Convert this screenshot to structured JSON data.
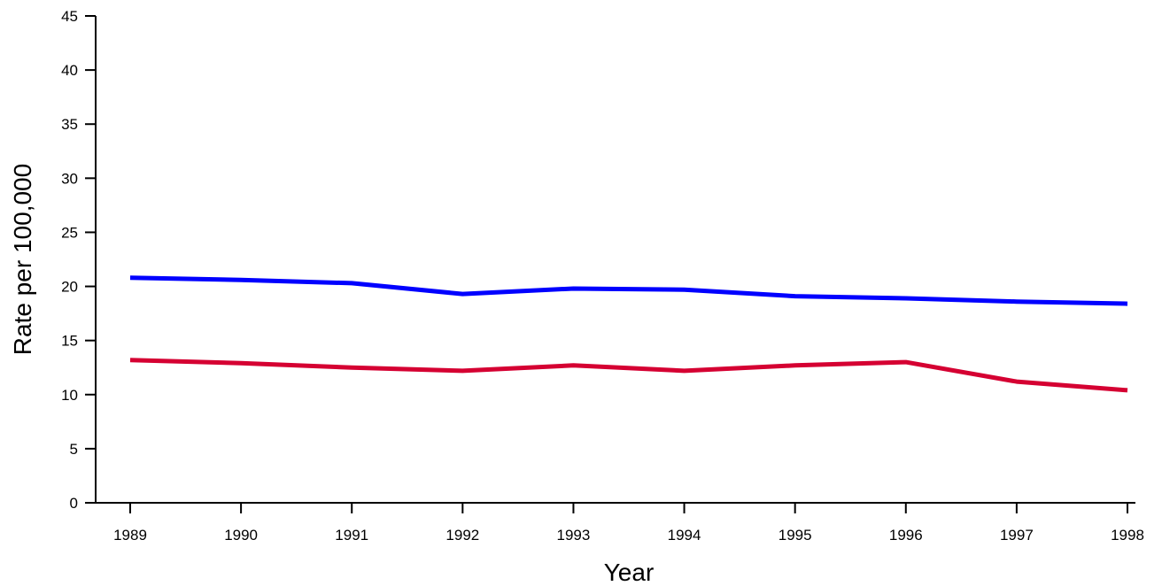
{
  "chart_data": {
    "type": "line",
    "title": "",
    "xlabel": "Year",
    "ylabel": "Rate per 100,000",
    "categories": [
      "1989",
      "1990",
      "1991",
      "1992",
      "1993",
      "1994",
      "1995",
      "1996",
      "1997",
      "1998"
    ],
    "ylim": [
      0,
      45
    ],
    "yticks": [
      0,
      5,
      10,
      15,
      20,
      25,
      30,
      35,
      40,
      45
    ],
    "grid": false,
    "series": [
      {
        "color": "#0000ff",
        "values": [
          20.8,
          20.6,
          20.3,
          19.3,
          19.8,
          19.7,
          19.1,
          18.9,
          18.6,
          18.4
        ]
      },
      {
        "color": "#d50032",
        "values": [
          13.2,
          12.9,
          12.5,
          12.2,
          12.7,
          12.2,
          12.7,
          13.0,
          11.2,
          10.4
        ]
      }
    ]
  }
}
